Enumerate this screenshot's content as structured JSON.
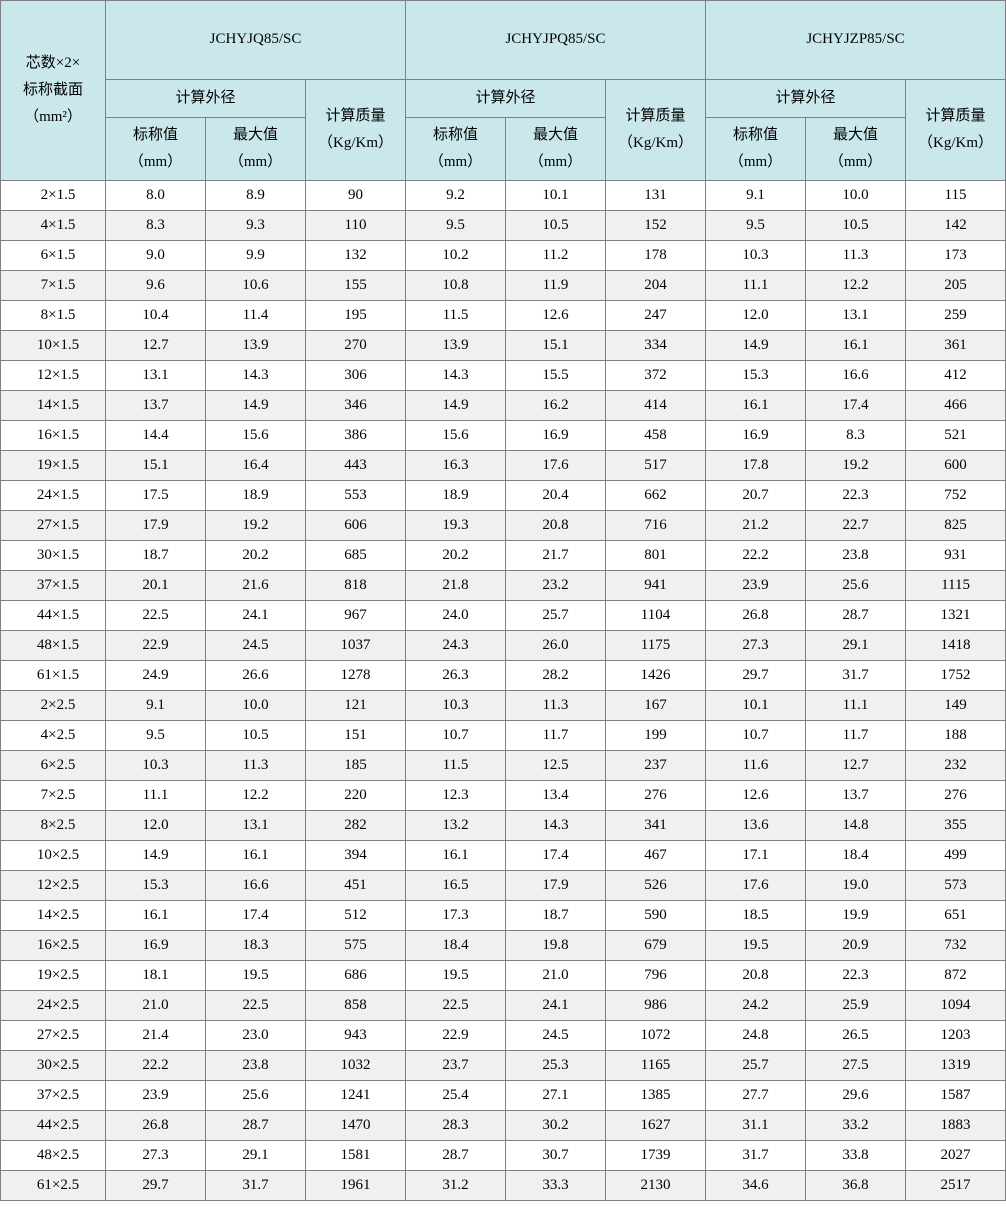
{
  "header": {
    "spec_line1": "芯数×2×",
    "spec_line2": "标称截面",
    "spec_line3": "（mm²）",
    "groups": [
      "JCHYJQ85/SC",
      "JCHYJPQ85/SC",
      "JCHYJZP85/SC"
    ],
    "diam_label": "计算外径",
    "mass_label": "计算质量",
    "mass_unit": "（Kg/Km）",
    "nom_label": "标称值",
    "nom_unit": "（mm）",
    "max_label": "最大值",
    "max_unit": "（mm）"
  },
  "rows": [
    {
      "spec": "2×1.5",
      "v": [
        "8.0",
        "8.9",
        "90",
        "9.2",
        "10.1",
        "131",
        "9.1",
        "10.0",
        "115"
      ]
    },
    {
      "spec": "4×1.5",
      "v": [
        "8.3",
        "9.3",
        "110",
        "9.5",
        "10.5",
        "152",
        "9.5",
        "10.5",
        "142"
      ]
    },
    {
      "spec": "6×1.5",
      "v": [
        "9.0",
        "9.9",
        "132",
        "10.2",
        "11.2",
        "178",
        "10.3",
        "11.3",
        "173"
      ]
    },
    {
      "spec": "7×1.5",
      "v": [
        "9.6",
        "10.6",
        "155",
        "10.8",
        "11.9",
        "204",
        "11.1",
        "12.2",
        "205"
      ]
    },
    {
      "spec": "8×1.5",
      "v": [
        "10.4",
        "11.4",
        "195",
        "11.5",
        "12.6",
        "247",
        "12.0",
        "13.1",
        "259"
      ]
    },
    {
      "spec": "10×1.5",
      "v": [
        "12.7",
        "13.9",
        "270",
        "13.9",
        "15.1",
        "334",
        "14.9",
        "16.1",
        "361"
      ]
    },
    {
      "spec": "12×1.5",
      "v": [
        "13.1",
        "14.3",
        "306",
        "14.3",
        "15.5",
        "372",
        "15.3",
        "16.6",
        "412"
      ]
    },
    {
      "spec": "14×1.5",
      "v": [
        "13.7",
        "14.9",
        "346",
        "14.9",
        "16.2",
        "414",
        "16.1",
        "17.4",
        "466"
      ]
    },
    {
      "spec": "16×1.5",
      "v": [
        "14.4",
        "15.6",
        "386",
        "15.6",
        "16.9",
        "458",
        "16.9",
        "8.3",
        "521"
      ]
    },
    {
      "spec": "19×1.5",
      "v": [
        "15.1",
        "16.4",
        "443",
        "16.3",
        "17.6",
        "517",
        "17.8",
        "19.2",
        "600"
      ]
    },
    {
      "spec": "24×1.5",
      "v": [
        "17.5",
        "18.9",
        "553",
        "18.9",
        "20.4",
        "662",
        "20.7",
        "22.3",
        "752"
      ]
    },
    {
      "spec": "27×1.5",
      "v": [
        "17.9",
        "19.2",
        "606",
        "19.3",
        "20.8",
        "716",
        "21.2",
        "22.7",
        "825"
      ]
    },
    {
      "spec": "30×1.5",
      "v": [
        "18.7",
        "20.2",
        "685",
        "20.2",
        "21.7",
        "801",
        "22.2",
        "23.8",
        "931"
      ]
    },
    {
      "spec": "37×1.5",
      "v": [
        "20.1",
        "21.6",
        "818",
        "21.8",
        "23.2",
        "941",
        "23.9",
        "25.6",
        "1115"
      ]
    },
    {
      "spec": "44×1.5",
      "v": [
        "22.5",
        "24.1",
        "967",
        "24.0",
        "25.7",
        "1104",
        "26.8",
        "28.7",
        "1321"
      ]
    },
    {
      "spec": "48×1.5",
      "v": [
        "22.9",
        "24.5",
        "1037",
        "24.3",
        "26.0",
        "1175",
        "27.3",
        "29.1",
        "1418"
      ]
    },
    {
      "spec": "61×1.5",
      "v": [
        "24.9",
        "26.6",
        "1278",
        "26.3",
        "28.2",
        "1426",
        "29.7",
        "31.7",
        "1752"
      ]
    },
    {
      "spec": "2×2.5",
      "v": [
        "9.1",
        "10.0",
        "121",
        "10.3",
        "11.3",
        "167",
        "10.1",
        "11.1",
        "149"
      ]
    },
    {
      "spec": "4×2.5",
      "v": [
        "9.5",
        "10.5",
        "151",
        "10.7",
        "11.7",
        "199",
        "10.7",
        "11.7",
        "188"
      ]
    },
    {
      "spec": "6×2.5",
      "v": [
        "10.3",
        "11.3",
        "185",
        "11.5",
        "12.5",
        "237",
        "11.6",
        "12.7",
        "232"
      ]
    },
    {
      "spec": "7×2.5",
      "v": [
        "11.1",
        "12.2",
        "220",
        "12.3",
        "13.4",
        "276",
        "12.6",
        "13.7",
        "276"
      ]
    },
    {
      "spec": "8×2.5",
      "v": [
        "12.0",
        "13.1",
        "282",
        "13.2",
        "14.3",
        "341",
        "13.6",
        "14.8",
        "355"
      ]
    },
    {
      "spec": "10×2.5",
      "v": [
        "14.9",
        "16.1",
        "394",
        "16.1",
        "17.4",
        "467",
        "17.1",
        "18.4",
        "499"
      ]
    },
    {
      "spec": "12×2.5",
      "v": [
        "15.3",
        "16.6",
        "451",
        "16.5",
        "17.9",
        "526",
        "17.6",
        "19.0",
        "573"
      ]
    },
    {
      "spec": "14×2.5",
      "v": [
        "16.1",
        "17.4",
        "512",
        "17.3",
        "18.7",
        "590",
        "18.5",
        "19.9",
        "651"
      ]
    },
    {
      "spec": "16×2.5",
      "v": [
        "16.9",
        "18.3",
        "575",
        "18.4",
        "19.8",
        "679",
        "19.5",
        "20.9",
        "732"
      ]
    },
    {
      "spec": "19×2.5",
      "v": [
        "18.1",
        "19.5",
        "686",
        "19.5",
        "21.0",
        "796",
        "20.8",
        "22.3",
        "872"
      ]
    },
    {
      "spec": "24×2.5",
      "v": [
        "21.0",
        "22.5",
        "858",
        "22.5",
        "24.1",
        "986",
        "24.2",
        "25.9",
        "1094"
      ]
    },
    {
      "spec": "27×2.5",
      "v": [
        "21.4",
        "23.0",
        "943",
        "22.9",
        "24.5",
        "1072",
        "24.8",
        "26.5",
        "1203"
      ]
    },
    {
      "spec": "30×2.5",
      "v": [
        "22.2",
        "23.8",
        "1032",
        "23.7",
        "25.3",
        "1165",
        "25.7",
        "27.5",
        "1319"
      ]
    },
    {
      "spec": "37×2.5",
      "v": [
        "23.9",
        "25.6",
        "1241",
        "25.4",
        "27.1",
        "1385",
        "27.7",
        "29.6",
        "1587"
      ]
    },
    {
      "spec": "44×2.5",
      "v": [
        "26.8",
        "28.7",
        "1470",
        "28.3",
        "30.2",
        "1627",
        "31.1",
        "33.2",
        "1883"
      ]
    },
    {
      "spec": "48×2.5",
      "v": [
        "27.3",
        "29.1",
        "1581",
        "28.7",
        "30.7",
        "1739",
        "31.7",
        "33.8",
        "2027"
      ]
    },
    {
      "spec": "61×2.5",
      "v": [
        "29.7",
        "31.7",
        "1961",
        "31.2",
        "33.3",
        "2130",
        "34.6",
        "36.8",
        "2517"
      ]
    }
  ],
  "colors": {
    "header_bg": "#cae8eb",
    "row_even_bg": "#f0f0f0",
    "border": "#808080"
  }
}
